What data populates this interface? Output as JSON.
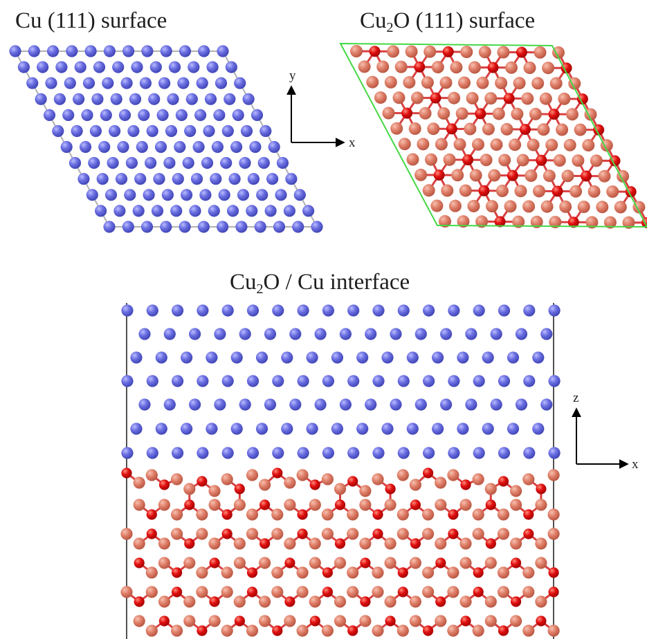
{
  "titles": {
    "cu_surface": {
      "pre": "Cu (111) surface",
      "sub": "",
      "post": ""
    },
    "cu2o_surface": {
      "pre": "Cu",
      "sub": "2",
      "post": "O (111) surface"
    },
    "interface": {
      "pre": "Cu",
      "sub": "2",
      "post": "O / Cu interface"
    }
  },
  "axes": {
    "xy": {
      "horizontal": "x",
      "vertical": "y"
    },
    "xz": {
      "horizontal": "x",
      "vertical": "z"
    }
  },
  "colors": {
    "cu_atom": "#6a6ee0",
    "cu_atom_dark": "#3a3fb0",
    "cu_oxide_atom": "#e0806a",
    "o_atom": "#e01010",
    "bond": "#d84040",
    "cell_cu": "#b0b0b0",
    "cell_cu2o": "#44d844",
    "cell_interface": "#505050"
  }
}
